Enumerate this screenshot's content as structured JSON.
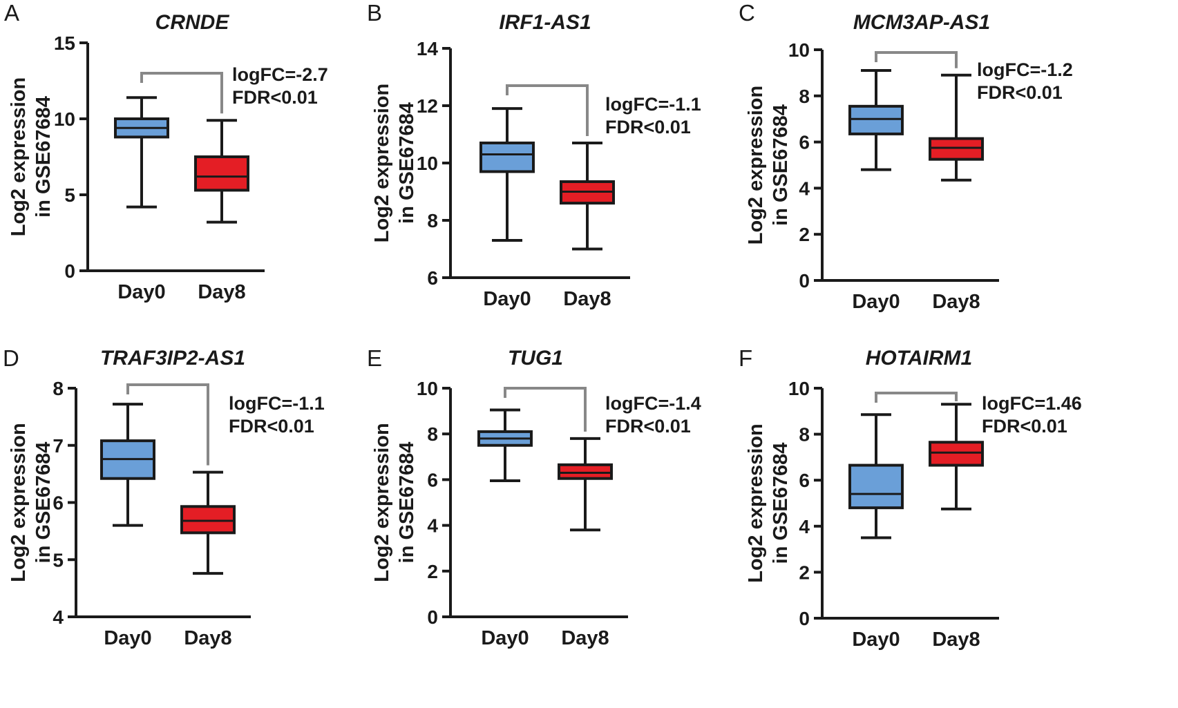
{
  "chart_data": [
    {
      "type": "boxplot",
      "panel_label": "A",
      "title": "CRNDE",
      "ylabel_line1": "Log2 expression",
      "ylabel_line2": "in GSE67684",
      "ylim": [
        0,
        15
      ],
      "yticks": [
        0,
        5,
        10,
        15
      ],
      "categories": [
        "Day0",
        "Day8"
      ],
      "boxes": [
        {
          "name": "Day0",
          "min": 4.2,
          "q1": 8.8,
          "median": 9.4,
          "q3": 10.0,
          "max": 11.4,
          "color": "#6a9fd8"
        },
        {
          "name": "Day8",
          "min": 3.2,
          "q1": 5.3,
          "median": 6.2,
          "q3": 7.5,
          "max": 9.9,
          "color": "#e41e25"
        }
      ],
      "annotation": {
        "logfc": "logFC=-2.7",
        "fdr": "FDR<0.01"
      }
    },
    {
      "type": "boxplot",
      "panel_label": "B",
      "title": "IRF1-AS1",
      "ylabel_line1": "Log2 expression",
      "ylabel_line2": "in GSE67684",
      "ylim": [
        6,
        14
      ],
      "yticks": [
        6,
        8,
        10,
        12,
        14
      ],
      "categories": [
        "Day0",
        "Day8"
      ],
      "boxes": [
        {
          "name": "Day0",
          "min": 7.3,
          "q1": 9.7,
          "median": 10.3,
          "q3": 10.7,
          "max": 11.9,
          "color": "#6a9fd8"
        },
        {
          "name": "Day8",
          "min": 7.0,
          "q1": 8.6,
          "median": 9.0,
          "q3": 9.35,
          "max": 10.7,
          "color": "#e41e25"
        }
      ],
      "annotation": {
        "logfc": "logFC=-1.1",
        "fdr": "FDR<0.01"
      }
    },
    {
      "type": "boxplot",
      "panel_label": "C",
      "title": "MCM3AP-AS1",
      "ylabel_line1": "Log2 expression",
      "ylabel_line2": "in GSE67684",
      "ylim": [
        0,
        10
      ],
      "yticks": [
        0,
        2,
        4,
        6,
        8,
        10
      ],
      "categories": [
        "Day0",
        "Day8"
      ],
      "boxes": [
        {
          "name": "Day0",
          "min": 4.8,
          "q1": 6.35,
          "median": 7.0,
          "q3": 7.55,
          "max": 9.1,
          "color": "#6a9fd8"
        },
        {
          "name": "Day8",
          "min": 4.35,
          "q1": 5.25,
          "median": 5.75,
          "q3": 6.15,
          "max": 8.9,
          "color": "#e41e25"
        }
      ],
      "annotation": {
        "logfc": "logFC=-1.2",
        "fdr": "FDR<0.01"
      }
    },
    {
      "type": "boxplot",
      "panel_label": "D",
      "title": "TRAF3IP2-AS1",
      "ylabel_line1": "Log2 expression",
      "ylabel_line2": "in GSE67684",
      "ylim": [
        4,
        8
      ],
      "yticks": [
        4,
        5,
        6,
        7,
        8
      ],
      "categories": [
        "Day0",
        "Day8"
      ],
      "boxes": [
        {
          "name": "Day0",
          "min": 5.6,
          "q1": 6.42,
          "median": 6.76,
          "q3": 7.08,
          "max": 7.72,
          "color": "#6a9fd8"
        },
        {
          "name": "Day8",
          "min": 4.76,
          "q1": 5.47,
          "median": 5.68,
          "q3": 5.93,
          "max": 6.53,
          "color": "#e41e25"
        }
      ],
      "annotation": {
        "logfc": "logFC=-1.1",
        "fdr": "FDR<0.01"
      }
    },
    {
      "type": "boxplot",
      "panel_label": "E",
      "title": "TUG1",
      "ylabel_line1": "Log2 expression",
      "ylabel_line2": "in GSE67684",
      "ylim": [
        0,
        10
      ],
      "yticks": [
        0,
        2,
        4,
        6,
        8,
        10
      ],
      "categories": [
        "Day0",
        "Day8"
      ],
      "boxes": [
        {
          "name": "Day0",
          "min": 5.95,
          "q1": 7.5,
          "median": 7.8,
          "q3": 8.1,
          "max": 9.05,
          "color": "#6a9fd8"
        },
        {
          "name": "Day8",
          "min": 3.8,
          "q1": 6.05,
          "median": 6.3,
          "q3": 6.65,
          "max": 7.8,
          "color": "#e41e25"
        }
      ],
      "annotation": {
        "logfc": "logFC=-1.4",
        "fdr": "FDR<0.01"
      }
    },
    {
      "type": "boxplot",
      "panel_label": "F",
      "title": "HOTAIRM1",
      "ylabel_line1": "Log2 expression",
      "ylabel_line2": "in GSE67684",
      "ylim": [
        0,
        10
      ],
      "yticks": [
        0,
        2,
        4,
        6,
        8,
        10
      ],
      "categories": [
        "Day0",
        "Day8"
      ],
      "boxes": [
        {
          "name": "Day0",
          "min": 3.5,
          "q1": 4.8,
          "median": 5.4,
          "q3": 6.65,
          "max": 8.85,
          "color": "#6a9fd8"
        },
        {
          "name": "Day8",
          "min": 4.75,
          "q1": 6.65,
          "median": 7.2,
          "q3": 7.65,
          "max": 9.3,
          "color": "#e41e25"
        }
      ],
      "annotation": {
        "logfc": "logFC=1.46",
        "fdr": "FDR<0.01"
      }
    }
  ]
}
